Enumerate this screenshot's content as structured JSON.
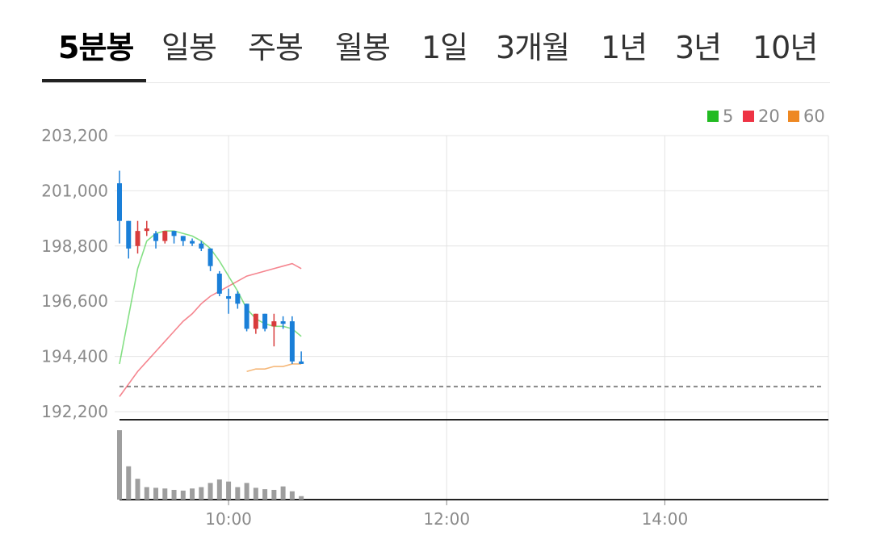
{
  "tabs": [
    {
      "label": "5분봉",
      "active": true
    },
    {
      "label": "일봉",
      "active": false
    },
    {
      "label": "주봉",
      "active": false
    },
    {
      "label": "월봉",
      "active": false
    },
    {
      "label": "1일",
      "active": false
    },
    {
      "label": "3개월",
      "active": false
    },
    {
      "label": "1년",
      "active": false
    },
    {
      "label": "3년",
      "active": false
    },
    {
      "label": "10년",
      "active": false
    }
  ],
  "colors": {
    "up": "#d83c3c",
    "down": "#1a7fd8",
    "ma5": "#33cc33",
    "ma20": "#ee3344",
    "ma60": "#ee8822",
    "volume": "#9e9e9e",
    "grid": "#e4e4e4"
  },
  "chart_data": {
    "type": "candlestick",
    "legend": [
      {
        "label": "5",
        "color": "#22bb22"
      },
      {
        "label": "20",
        "color": "#ee3344"
      },
      {
        "label": "60",
        "color": "#ee8822"
      }
    ],
    "legend_position": "top-right",
    "yticks": [
      "203,200",
      "201,000",
      "198,800",
      "196,600",
      "194,400",
      "192,200"
    ],
    "yticks_values": [
      203200,
      201000,
      198800,
      196600,
      194400,
      192200
    ],
    "ylim": [
      192200,
      203200
    ],
    "xticks": [
      "10:00",
      "12:00",
      "14:00"
    ],
    "x_range": [
      "09:00",
      "15:30"
    ],
    "interval_minutes": 5,
    "reference_price": 193200,
    "candles": [
      {
        "time": "09:00",
        "open": 201300,
        "high": 201800,
        "low": 198900,
        "close": 199800
      },
      {
        "time": "09:05",
        "open": 199800,
        "high": 199800,
        "low": 198300,
        "close": 198700
      },
      {
        "time": "09:10",
        "open": 198800,
        "high": 199800,
        "low": 198500,
        "close": 199400
      },
      {
        "time": "09:15",
        "open": 199400,
        "high": 199800,
        "low": 199200,
        "close": 199500
      },
      {
        "time": "09:20",
        "open": 199300,
        "high": 199400,
        "low": 198700,
        "close": 199000
      },
      {
        "time": "09:25",
        "open": 199000,
        "high": 199400,
        "low": 198900,
        "close": 199400
      },
      {
        "time": "09:30",
        "open": 199400,
        "high": 199400,
        "low": 198900,
        "close": 199200
      },
      {
        "time": "09:35",
        "open": 199200,
        "high": 199200,
        "low": 198800,
        "close": 199000
      },
      {
        "time": "09:40",
        "open": 199000,
        "high": 199100,
        "low": 198800,
        "close": 198900
      },
      {
        "time": "09:45",
        "open": 198900,
        "high": 199000,
        "low": 198600,
        "close": 198700
      },
      {
        "time": "09:50",
        "open": 198700,
        "high": 198700,
        "low": 197800,
        "close": 198000
      },
      {
        "time": "09:55",
        "open": 197700,
        "high": 197800,
        "low": 196800,
        "close": 196900
      },
      {
        "time": "10:00",
        "open": 196800,
        "high": 197100,
        "low": 196100,
        "close": 196700
      },
      {
        "time": "10:05",
        "open": 196900,
        "high": 197000,
        "low": 196300,
        "close": 196500
      },
      {
        "time": "10:10",
        "open": 196500,
        "high": 196500,
        "low": 195400,
        "close": 195500
      },
      {
        "time": "10:15",
        "open": 195500,
        "high": 196100,
        "low": 195300,
        "close": 196100
      },
      {
        "time": "10:20",
        "open": 196100,
        "high": 196100,
        "low": 195400,
        "close": 195500
      },
      {
        "time": "10:25",
        "open": 195600,
        "high": 196100,
        "low": 194800,
        "close": 195800
      },
      {
        "time": "10:30",
        "open": 195800,
        "high": 196000,
        "low": 195500,
        "close": 195700
      },
      {
        "time": "10:35",
        "open": 195800,
        "high": 196000,
        "low": 194100,
        "close": 194200
      },
      {
        "time": "10:40",
        "open": 194200,
        "high": 194600,
        "low": 194100,
        "close": 194100
      }
    ],
    "ma5": [
      {
        "time": "09:00",
        "value": 194100
      },
      {
        "time": "09:05",
        "value": 196000
      },
      {
        "time": "09:10",
        "value": 197900
      },
      {
        "time": "09:15",
        "value": 199000
      },
      {
        "time": "09:20",
        "value": 199300
      },
      {
        "time": "09:25",
        "value": 199400
      },
      {
        "time": "09:30",
        "value": 199400
      },
      {
        "time": "09:35",
        "value": 199300
      },
      {
        "time": "09:40",
        "value": 199200
      },
      {
        "time": "09:45",
        "value": 199000
      },
      {
        "time": "09:50",
        "value": 198700
      },
      {
        "time": "09:55",
        "value": 198200
      },
      {
        "time": "10:00",
        "value": 197600
      },
      {
        "time": "10:05",
        "value": 197000
      },
      {
        "time": "10:10",
        "value": 196300
      },
      {
        "time": "10:15",
        "value": 195900
      },
      {
        "time": "10:20",
        "value": 195700
      },
      {
        "time": "10:25",
        "value": 195600
      },
      {
        "time": "10:30",
        "value": 195600
      },
      {
        "time": "10:35",
        "value": 195500
      },
      {
        "time": "10:40",
        "value": 195200
      }
    ],
    "ma20": [
      {
        "time": "09:00",
        "value": 192800
      },
      {
        "time": "09:05",
        "value": 193300
      },
      {
        "time": "09:10",
        "value": 193800
      },
      {
        "time": "09:15",
        "value": 194200
      },
      {
        "time": "09:20",
        "value": 194600
      },
      {
        "time": "09:25",
        "value": 195000
      },
      {
        "time": "09:30",
        "value": 195400
      },
      {
        "time": "09:35",
        "value": 195800
      },
      {
        "time": "09:40",
        "value": 196100
      },
      {
        "time": "09:45",
        "value": 196500
      },
      {
        "time": "09:50",
        "value": 196800
      },
      {
        "time": "09:55",
        "value": 197000
      },
      {
        "time": "10:00",
        "value": 197200
      },
      {
        "time": "10:05",
        "value": 197400
      },
      {
        "time": "10:10",
        "value": 197600
      },
      {
        "time": "10:15",
        "value": 197700
      },
      {
        "time": "10:20",
        "value": 197800
      },
      {
        "time": "10:25",
        "value": 197900
      },
      {
        "time": "10:30",
        "value": 198000
      },
      {
        "time": "10:35",
        "value": 198100
      },
      {
        "time": "10:40",
        "value": 197900
      }
    ],
    "ma60": [
      {
        "time": "10:10",
        "value": 193800
      },
      {
        "time": "10:15",
        "value": 193900
      },
      {
        "time": "10:20",
        "value": 193900
      },
      {
        "time": "10:25",
        "value": 194000
      },
      {
        "time": "10:30",
        "value": 194000
      },
      {
        "time": "10:35",
        "value": 194100
      },
      {
        "time": "10:40",
        "value": 194100
      }
    ],
    "volume_ratio": [
      1.0,
      0.48,
      0.3,
      0.18,
      0.17,
      0.16,
      0.14,
      0.13,
      0.16,
      0.18,
      0.24,
      0.29,
      0.26,
      0.18,
      0.24,
      0.17,
      0.15,
      0.14,
      0.19,
      0.12,
      0.05
    ]
  }
}
